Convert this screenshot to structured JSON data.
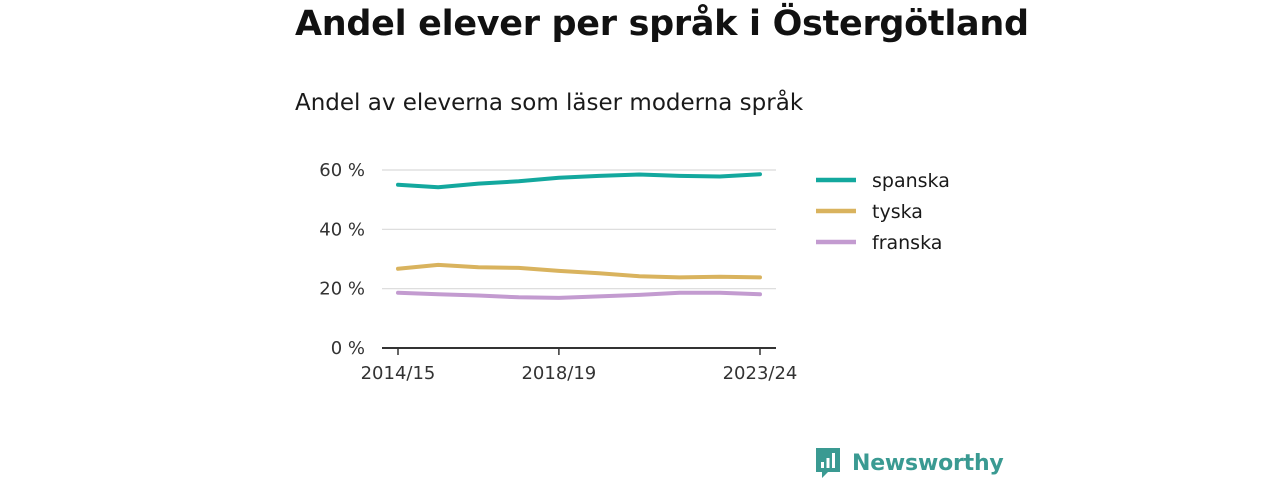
{
  "title": "Andel elever per språk i Östergötland",
  "subtitle": "Andel av eleverna som läser moderna språk",
  "brand": {
    "name": "Newsworthy",
    "icon": "newsworthy-logo-icon",
    "color": "#3a9a92"
  },
  "chart_data": {
    "type": "line",
    "x": [
      "2014/15",
      "2015/16",
      "2016/17",
      "2017/18",
      "2018/19",
      "2019/20",
      "2020/21",
      "2021/22",
      "2022/23",
      "2023/24"
    ],
    "x_tick_labels": [
      "2014/15",
      "2018/19",
      "2023/24"
    ],
    "y_ticks": [
      0,
      20,
      40,
      60
    ],
    "y_tick_labels": [
      "0 %",
      "20 %",
      "40 %",
      "60 %"
    ],
    "ylim": [
      0,
      60
    ],
    "grid": true,
    "legend_position": "right",
    "series": [
      {
        "name": "spanska",
        "color": "#13a89e",
        "values": [
          55,
          54.2,
          55.4,
          56.2,
          57.4,
          58,
          58.5,
          58,
          57.8,
          58.6
        ]
      },
      {
        "name": "tyska",
        "color": "#d9b35e",
        "values": [
          26.7,
          28,
          27.2,
          27,
          26,
          25.2,
          24.2,
          23.8,
          24,
          23.8
        ]
      },
      {
        "name": "franska",
        "color": "#c39bd0",
        "values": [
          18.6,
          18.1,
          17.7,
          17.1,
          16.9,
          17.4,
          17.9,
          18.6,
          18.6,
          18.1
        ]
      }
    ]
  }
}
